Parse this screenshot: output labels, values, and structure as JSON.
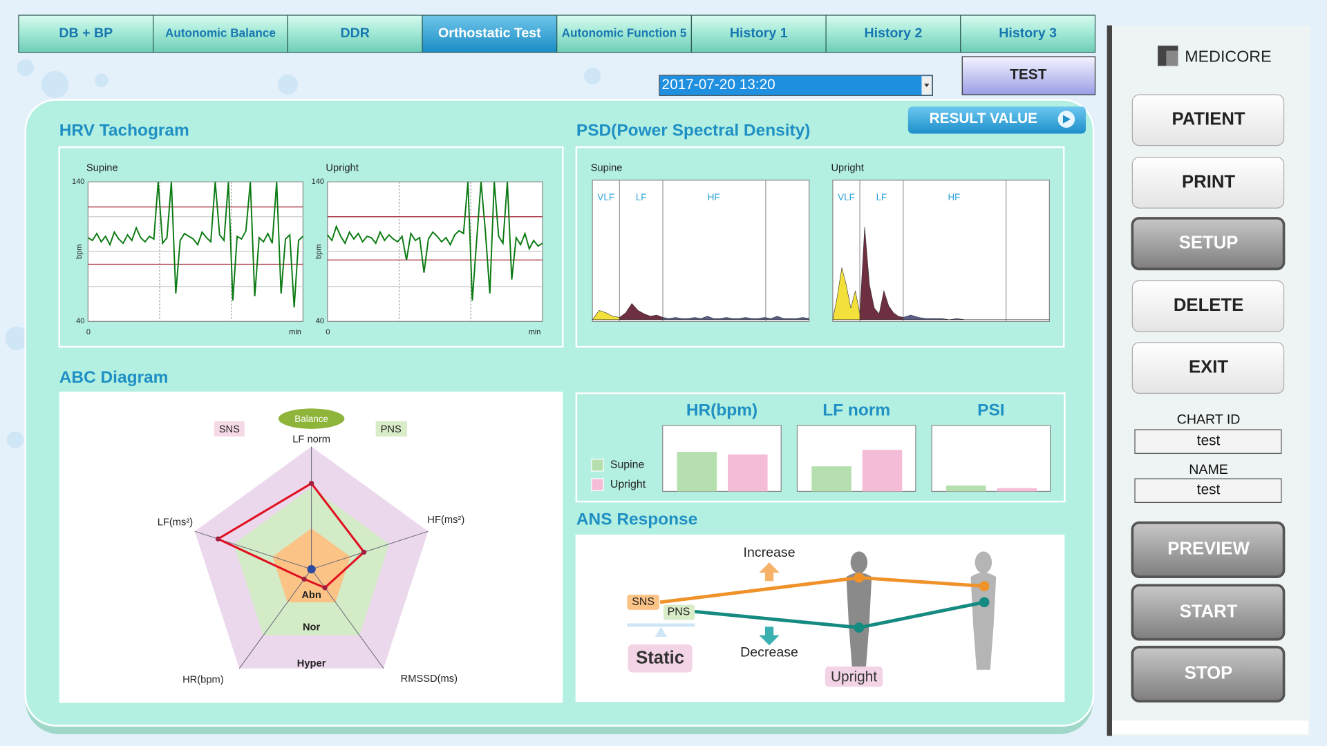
{
  "tabs": [
    {
      "label": "DB + BP",
      "active": false
    },
    {
      "label": "Autonomic Balance",
      "active": false
    },
    {
      "label": "DDR",
      "active": false
    },
    {
      "label": "Orthostatic Test",
      "active": true
    },
    {
      "label": "Autonomic Function 5",
      "active": false
    },
    {
      "label": "History 1",
      "active": false
    },
    {
      "label": "History 2",
      "active": false
    },
    {
      "label": "History 3",
      "active": false
    }
  ],
  "test_button": "TEST",
  "date_select": "2017-07-20 13:20",
  "result_value_button": "RESULT VALUE",
  "sidebar": {
    "logo": "MEDICORE",
    "buttons": [
      {
        "label": "PATIENT",
        "enabled": true
      },
      {
        "label": "PRINT",
        "enabled": true
      },
      {
        "label": "SETUP",
        "enabled": false
      },
      {
        "label": "DELETE",
        "enabled": true
      },
      {
        "label": "EXIT",
        "enabled": true
      }
    ],
    "chart_id_label": "CHART ID",
    "chart_id": "test",
    "name_label": "NAME",
    "name": "test",
    "action_buttons": [
      {
        "label": "PREVIEW",
        "enabled": false
      },
      {
        "label": "START",
        "enabled": false
      },
      {
        "label": "STOP",
        "enabled": false
      }
    ]
  },
  "hrv": {
    "title": "HRV Tachogram",
    "y_top": 140,
    "y_bottom": 40,
    "y_axis_label": "bpm",
    "x_start": 0,
    "x_unit": "min",
    "panels": [
      {
        "label": "Supine",
        "reference_lines": [
          122,
          81
        ],
        "values": [
          100,
          98,
          103,
          97,
          101,
          95,
          104,
          99,
          96,
          102,
          98,
          107,
          100,
          97,
          101,
          99,
          140,
          96,
          100,
          140,
          60,
          98,
          103,
          101,
          99,
          95,
          104,
          100,
          97,
          140,
          102,
          98,
          140,
          55,
          101,
          99,
          105,
          140,
          58,
          100,
          97,
          103,
          96,
          140,
          60,
          99,
          102,
          50,
          98,
          101
        ]
      },
      {
        "label": "Upright",
        "reference_lines": [
          115,
          84
        ],
        "values": [
          102,
          98,
          108,
          101,
          96,
          104,
          99,
          103,
          97,
          101,
          100,
          96,
          104,
          98,
          102,
          99,
          97,
          101,
          84,
          103,
          98,
          100,
          75,
          99,
          104,
          101,
          97,
          100,
          95,
          102,
          105,
          103,
          140,
          55,
          98,
          140,
          104,
          60,
          140,
          101,
          96,
          140,
          70,
          100,
          95,
          103,
          92,
          98,
          94,
          96
        ]
      }
    ]
  },
  "psd": {
    "title": "PSD(Power Spectral Density)",
    "bands": [
      "VLF",
      "LF",
      "HF"
    ],
    "panels": [
      {
        "label": "Supine",
        "vlf": [
          0,
          8,
          6,
          3,
          2
        ],
        "lf": [
          2,
          6,
          14,
          8,
          5,
          3,
          4,
          2
        ],
        "hf": [
          2,
          1,
          2,
          1,
          1,
          2,
          1,
          3,
          1,
          1,
          2,
          1,
          1,
          2,
          1,
          1,
          2,
          1,
          3,
          1,
          1,
          1,
          2,
          1
        ]
      },
      {
        "label": "Upright",
        "vlf": [
          0,
          20,
          45,
          30,
          10,
          25,
          5
        ],
        "lf": [
          5,
          80,
          30,
          10,
          5,
          25,
          12,
          6,
          3,
          2
        ],
        "hf": [
          2,
          4,
          2,
          1,
          1,
          1,
          0,
          1,
          0,
          0,
          0,
          0,
          0,
          0,
          0,
          0,
          0,
          0,
          0,
          0
        ]
      }
    ]
  },
  "abc": {
    "title": "ABC Diagram",
    "balance": "Balance",
    "sns": "SNS",
    "pns": "PNS",
    "axes": [
      "LF norm",
      "HF(ms²)",
      "RMSSD(ms)",
      "HR(bpm)",
      "LF(ms²)"
    ],
    "zones": [
      "Abn",
      "Nor",
      "Hyper"
    ],
    "values": [
      2.1,
      1.35,
      0.56,
      0.3,
      2.4
    ]
  },
  "comparison": {
    "legend": [
      "Supine",
      "Upright"
    ],
    "colors": [
      "#b5dfae",
      "#f5bcd8"
    ],
    "charts": [
      {
        "title": "HR(bpm)",
        "values": [
          60,
          56
        ]
      },
      {
        "title": "LF norm",
        "values": [
          38,
          63
        ]
      },
      {
        "title": "PSI",
        "values": [
          9,
          5
        ]
      }
    ]
  },
  "ans": {
    "title": "ANS Response",
    "sns": "SNS",
    "pns": "PNS",
    "increase": "Increase",
    "decrease": "Decrease",
    "static": "Static",
    "upright": "Upright"
  }
}
